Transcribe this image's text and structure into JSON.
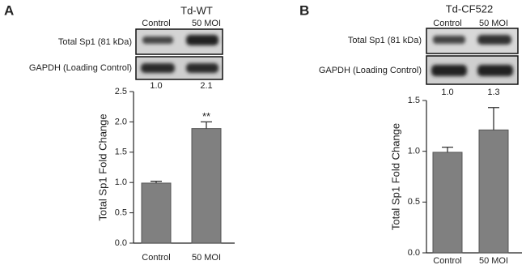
{
  "chart_data": [
    {
      "type": "bar",
      "panel": "A",
      "blot": {
        "title": "Td-WT",
        "columns": [
          "Control",
          "50 MOI"
        ],
        "rows": [
          "Total Sp1 (81 kDa)",
          "GAPDH (Loading Control)"
        ],
        "densitometry": [
          "1.0",
          "2.1"
        ]
      },
      "ylabel": "Total Sp1 Fold Change",
      "categories": [
        "Control",
        "50 MOI"
      ],
      "values": [
        0.99,
        1.89
      ],
      "errors": [
        0.03,
        0.11
      ],
      "value_annotations": [
        null,
        "**"
      ],
      "color": "#808080",
      "ylim": [
        0,
        2.5
      ],
      "yticks": [
        {
          "value": 0,
          "label": "0.0"
        },
        0.5,
        {
          "value": 1,
          "label": "1.0"
        },
        1.5,
        {
          "value": 2,
          "label": "2.0"
        },
        2.5
      ]
    },
    {
      "type": "bar",
      "panel": "B",
      "blot": {
        "title": "Td-CF522",
        "columns": [
          "Control",
          "50 MOI"
        ],
        "rows": [
          "Total Sp1 (81 kDa)",
          "GAPDH (Loading Control)"
        ],
        "densitometry": [
          "1.0",
          "1.3"
        ]
      },
      "ylabel": "Total Sp1 Fold Change",
      "categories": [
        "Control",
        "50 MOI"
      ],
      "values": [
        0.99,
        1.21
      ],
      "errors": [
        0.05,
        0.22
      ],
      "value_annotations": [
        null,
        null
      ],
      "color": "#808080",
      "ylim": [
        0,
        1.5
      ],
      "yticks": [
        {
          "value": 0,
          "label": "0.0"
        },
        0.5,
        {
          "value": 1,
          "label": "1.0"
        },
        1.5
      ]
    }
  ]
}
